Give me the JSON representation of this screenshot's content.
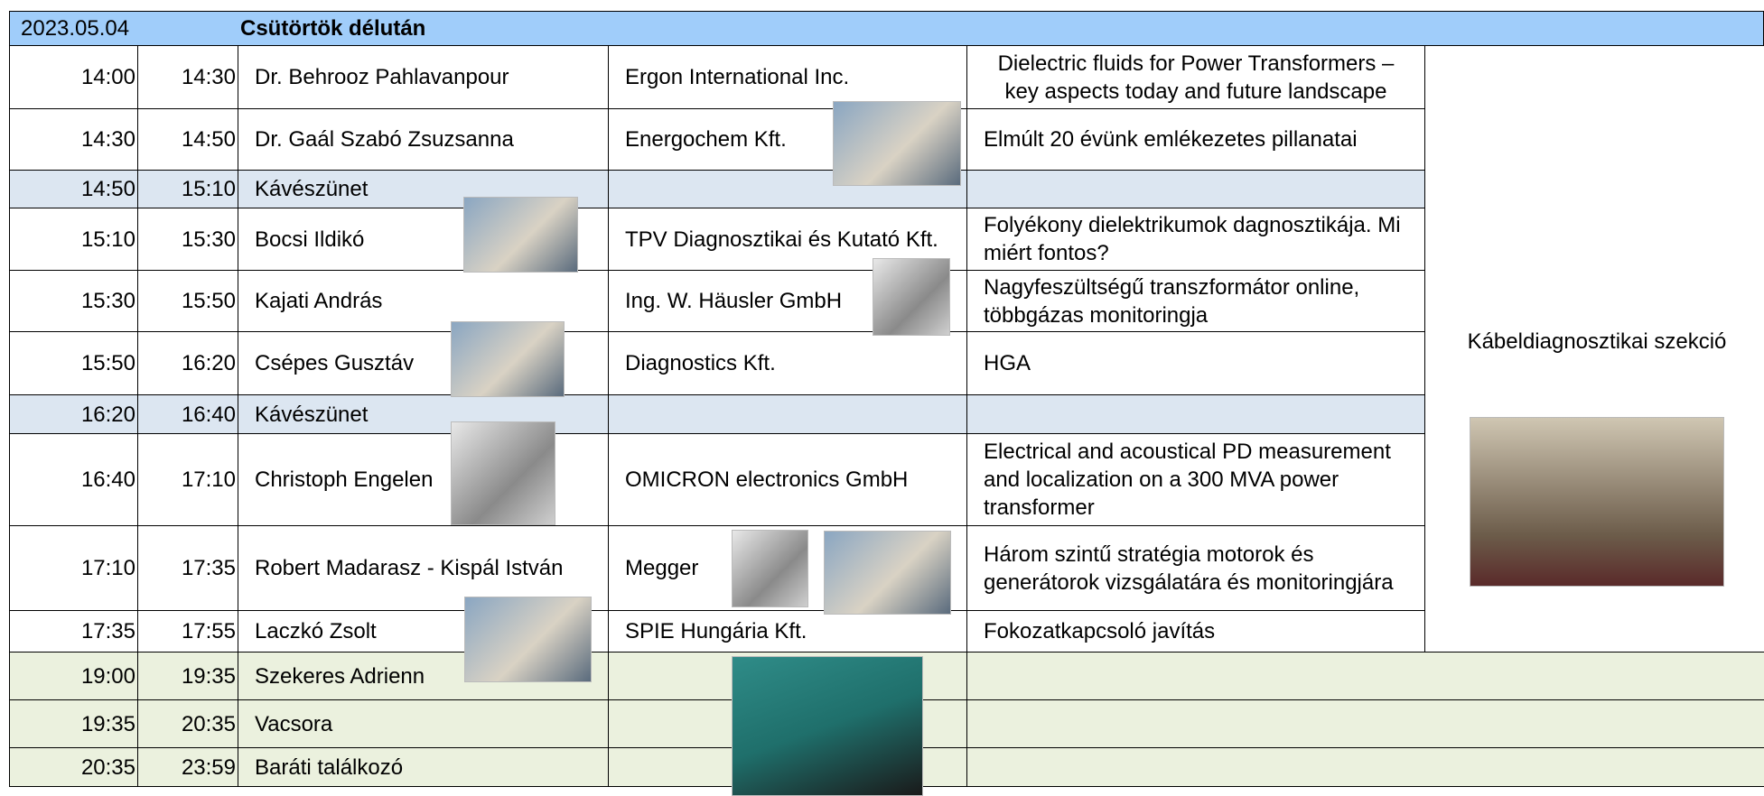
{
  "header": {
    "date": "2023.05.04",
    "title": "Csütörtök délután"
  },
  "sessions": [
    {
      "start": "14:00",
      "end": "14:30",
      "speaker": "Dr. Behrooz Pahlavanpour",
      "company": "Ergon International Inc.",
      "title": "Dielectric fluids for Power Transformers – key aspects today and future landscape"
    },
    {
      "start": "14:30",
      "end": "14:50",
      "speaker": "Dr. Gaál Szabó Zsuzsanna",
      "company": "Energochem Kft.",
      "title": "Elmúlt 20 évünk emlékezetes pillanatai"
    },
    {
      "start": "14:50",
      "end": "15:10",
      "speaker": "Kávészünet"
    },
    {
      "start": "15:10",
      "end": "15:30",
      "speaker": "Bocsi Ildikó",
      "company": "TPV Diagnosztikai és Kutató Kft.",
      "title": "Folyékony dielektrikumok dagnosztikája. Mi miért fontos?"
    },
    {
      "start": "15:30",
      "end": "15:50",
      "speaker": "Kajati András",
      "company": "Ing. W. Häusler GmbH",
      "title": "Nagyfeszültségű transzformátor online, többgázas monitoringja"
    },
    {
      "start": "15:50",
      "end": "16:20",
      "speaker": "Csépes Gusztáv",
      "company": "Diagnostics Kft.",
      "title": "HGA"
    },
    {
      "start": "16:20",
      "end": "16:40",
      "speaker": "Kávészünet"
    },
    {
      "start": "16:40",
      "end": "17:10",
      "speaker": "Christoph Engelen",
      "company": "OMICRON electronics GmbH",
      "title": "Electrical and acoustical PD measurement and localization on a 300 MVA power transformer"
    },
    {
      "start": "17:10",
      "end": "17:35",
      "speaker": "Robert Madarasz - Kispál István",
      "company": "Megger",
      "title": "Három szintű stratégia motorok és generátorok vizsgálatára és monitoringjára"
    },
    {
      "start": "17:35",
      "end": "17:55",
      "speaker": "Laczkó Zsolt",
      "company": "SPIE Hungária Kft.",
      "title": "Fokozatkapcsoló javítás"
    }
  ],
  "side": {
    "label": "Kábeldiagnosztikai szekció"
  },
  "evening": [
    {
      "start": "19:00",
      "end": "19:35",
      "speaker": "Szekeres Adrienn"
    },
    {
      "start": "19:35",
      "end": "20:35",
      "speaker": "Vacsora"
    },
    {
      "start": "20:35",
      "end": "23:59",
      "speaker": "Baráti találkozó"
    }
  ]
}
